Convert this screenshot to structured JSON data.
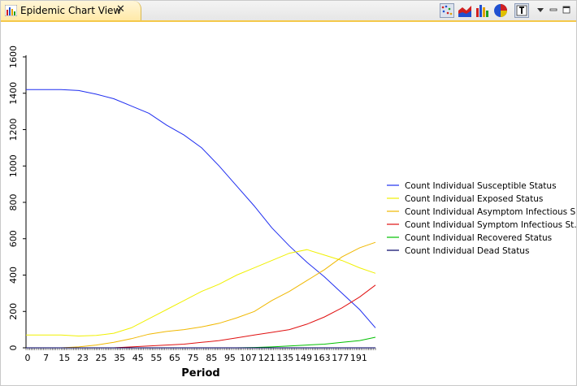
{
  "tab": {
    "title": "Epidemic Chart View",
    "icon": "chart-view-icon",
    "close_icon": "close-icon"
  },
  "toolbar": {
    "buttons": [
      {
        "name": "scatter-chart-icon",
        "pressed": true
      },
      {
        "name": "area-chart-icon",
        "pressed": false
      },
      {
        "name": "bar-chart-icon",
        "pressed": false
      },
      {
        "name": "pie-chart-icon",
        "pressed": false
      },
      {
        "name": "text-toggle-icon",
        "pressed": true
      }
    ],
    "menu_icon": "view-menu-icon",
    "minimize_icon": "minimize-icon",
    "maximize_icon": "maximize-icon"
  },
  "chart_data": {
    "type": "line",
    "xlabel": "Period",
    "ylabel": "",
    "xlim": [
      0,
      199
    ],
    "ylim": [
      0,
      1600
    ],
    "grid": false,
    "legend_position": "right",
    "x_ticks": [
      "0",
      "7",
      "15",
      "23",
      "25",
      "35",
      "45",
      "55",
      "65",
      "75",
      "85",
      "95",
      "107",
      "121",
      "135",
      "149",
      "163",
      "177",
      "191"
    ],
    "y_ticks": [
      0,
      200,
      400,
      600,
      800,
      1000,
      1200,
      1400,
      1600
    ],
    "x": [
      0,
      10,
      20,
      30,
      40,
      50,
      60,
      70,
      80,
      90,
      100,
      110,
      120,
      130,
      140,
      150,
      160,
      170,
      180,
      190,
      199
    ],
    "series": [
      {
        "name": "Count Individual Susceptible Status",
        "color": "#1f2ef0",
        "values": [
          1420,
          1420,
          1420,
          1415,
          1395,
          1370,
          1330,
          1290,
          1225,
          1170,
          1100,
          1000,
          890,
          780,
          660,
          560,
          470,
          390,
          300,
          210,
          110
        ]
      },
      {
        "name": "Count Individual Exposed Status",
        "color": "#f0f000",
        "values": [
          70,
          70,
          70,
          65,
          68,
          80,
          110,
          160,
          210,
          260,
          310,
          350,
          400,
          440,
          480,
          520,
          540,
          510,
          480,
          440,
          410
        ]
      },
      {
        "name": "Count Individual Asymptom Infectious S...",
        "color": "#f0b800",
        "values": [
          0,
          0,
          0,
          5,
          15,
          30,
          50,
          75,
          90,
          100,
          115,
          135,
          165,
          200,
          260,
          310,
          370,
          430,
          500,
          550,
          580
        ]
      },
      {
        "name": "Count Individual Symptom Infectious St...",
        "color": "#e01010",
        "values": [
          0,
          0,
          0,
          0,
          0,
          0,
          5,
          10,
          15,
          20,
          30,
          40,
          55,
          70,
          85,
          100,
          130,
          170,
          220,
          280,
          345
        ]
      },
      {
        "name": "Count Individual Recovered Status",
        "color": "#00c000",
        "values": [
          0,
          0,
          0,
          0,
          0,
          0,
          0,
          0,
          0,
          0,
          0,
          0,
          0,
          2,
          5,
          10,
          15,
          20,
          30,
          40,
          58
        ]
      },
      {
        "name": "Count Individual Dead Status",
        "color": "#000066",
        "values": [
          0,
          0,
          0,
          0,
          0,
          0,
          0,
          0,
          0,
          0,
          0,
          0,
          0,
          0,
          0,
          0,
          0,
          0,
          0,
          0,
          0
        ]
      }
    ]
  }
}
